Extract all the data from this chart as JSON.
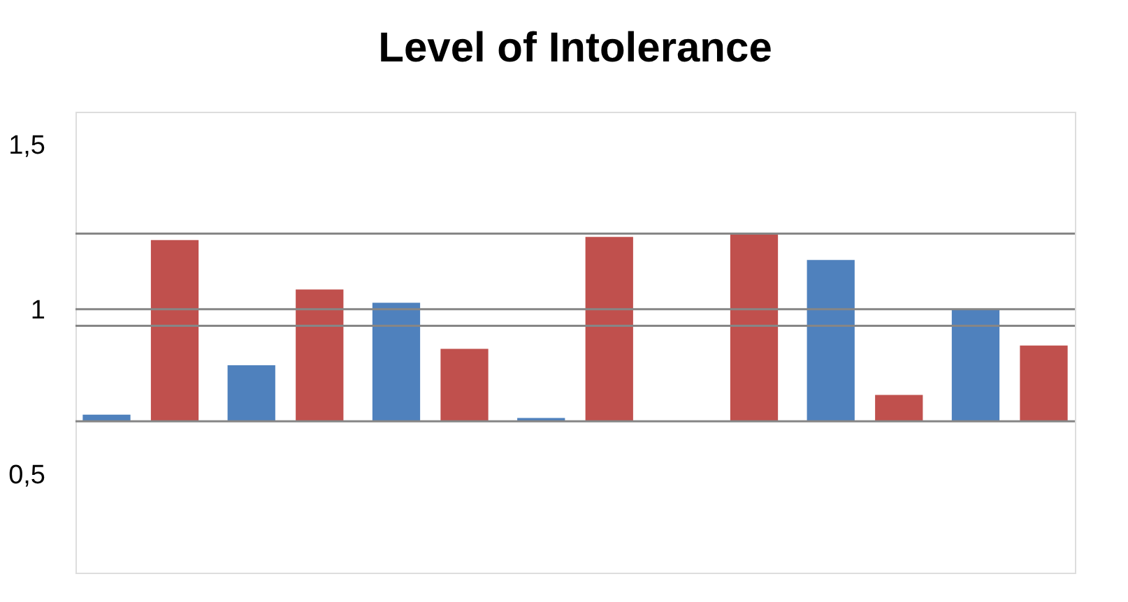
{
  "chart_data": {
    "type": "bar",
    "title": "Level of Intolerance",
    "categories": [
      null,
      null,
      null,
      null,
      null,
      null,
      null
    ],
    "series": [
      {
        "color": "#4f81bd",
        "base": [
          0.66,
          0.66,
          0.66,
          0.66,
          null,
          0.66,
          0.66
        ],
        "values": [
          0.02,
          0.17,
          0.36,
          0.01,
          null,
          0.49,
          0.34
        ]
      },
      {
        "color": "#c0504d",
        "base": [
          0.66,
          0.66,
          0.66,
          0.66,
          0.66,
          0.66,
          0.66
        ],
        "values": [
          0.55,
          0.4,
          0.22,
          0.56,
          0.57,
          0.08,
          0.23
        ]
      }
    ],
    "ylim": [
      0.2,
      1.6
    ],
    "yticks": [
      {
        "value": 0.5,
        "label": "0,5"
      },
      {
        "value": 1,
        "label": "1"
      },
      {
        "value": 1.5,
        "label": "1,5"
      }
    ],
    "ref_lines": [
      {
        "axis": "y",
        "value": 0.66,
        "color": "#868686"
      },
      {
        "axis": "y",
        "value": 0.95,
        "color": "#868686"
      },
      {
        "axis": "y",
        "value": 1,
        "color": "#868686"
      },
      {
        "axis": "y",
        "value": 1.23,
        "color": "#868686"
      }
    ],
    "grid": false,
    "legend": false
  }
}
